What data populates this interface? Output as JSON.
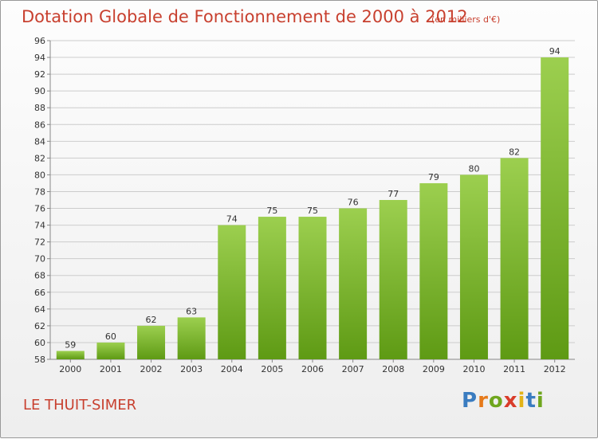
{
  "header": {
    "title": "Dotation Globale de Fonctionnement de 2000 à 2012",
    "subtitle": "(en milliers d'€)"
  },
  "footer": {
    "commune": "LE THUIT-SIMER",
    "logo_letters": [
      "P",
      "r",
      "o",
      "x",
      "i",
      "t",
      "i"
    ]
  },
  "colors": {
    "accent": "#c8402f",
    "bar_light": "#9ccf4f",
    "bar_dark": "#5e9a14",
    "grid": "#cccccc"
  },
  "chart_data": {
    "type": "bar",
    "title": "Dotation Globale de Fonctionnement de 2000 à 2012",
    "subtitle": "(en milliers d'€)",
    "categories": [
      "2000",
      "2001",
      "2002",
      "2003",
      "2004",
      "2005",
      "2006",
      "2007",
      "2008",
      "2009",
      "2010",
      "2011",
      "2012"
    ],
    "values": [
      59,
      60,
      62,
      63,
      74,
      75,
      75,
      76,
      77,
      79,
      80,
      82,
      94
    ],
    "ylim": [
      58,
      96
    ],
    "ytick_step": 2,
    "grid": true,
    "xlabel": "",
    "ylabel": ""
  }
}
